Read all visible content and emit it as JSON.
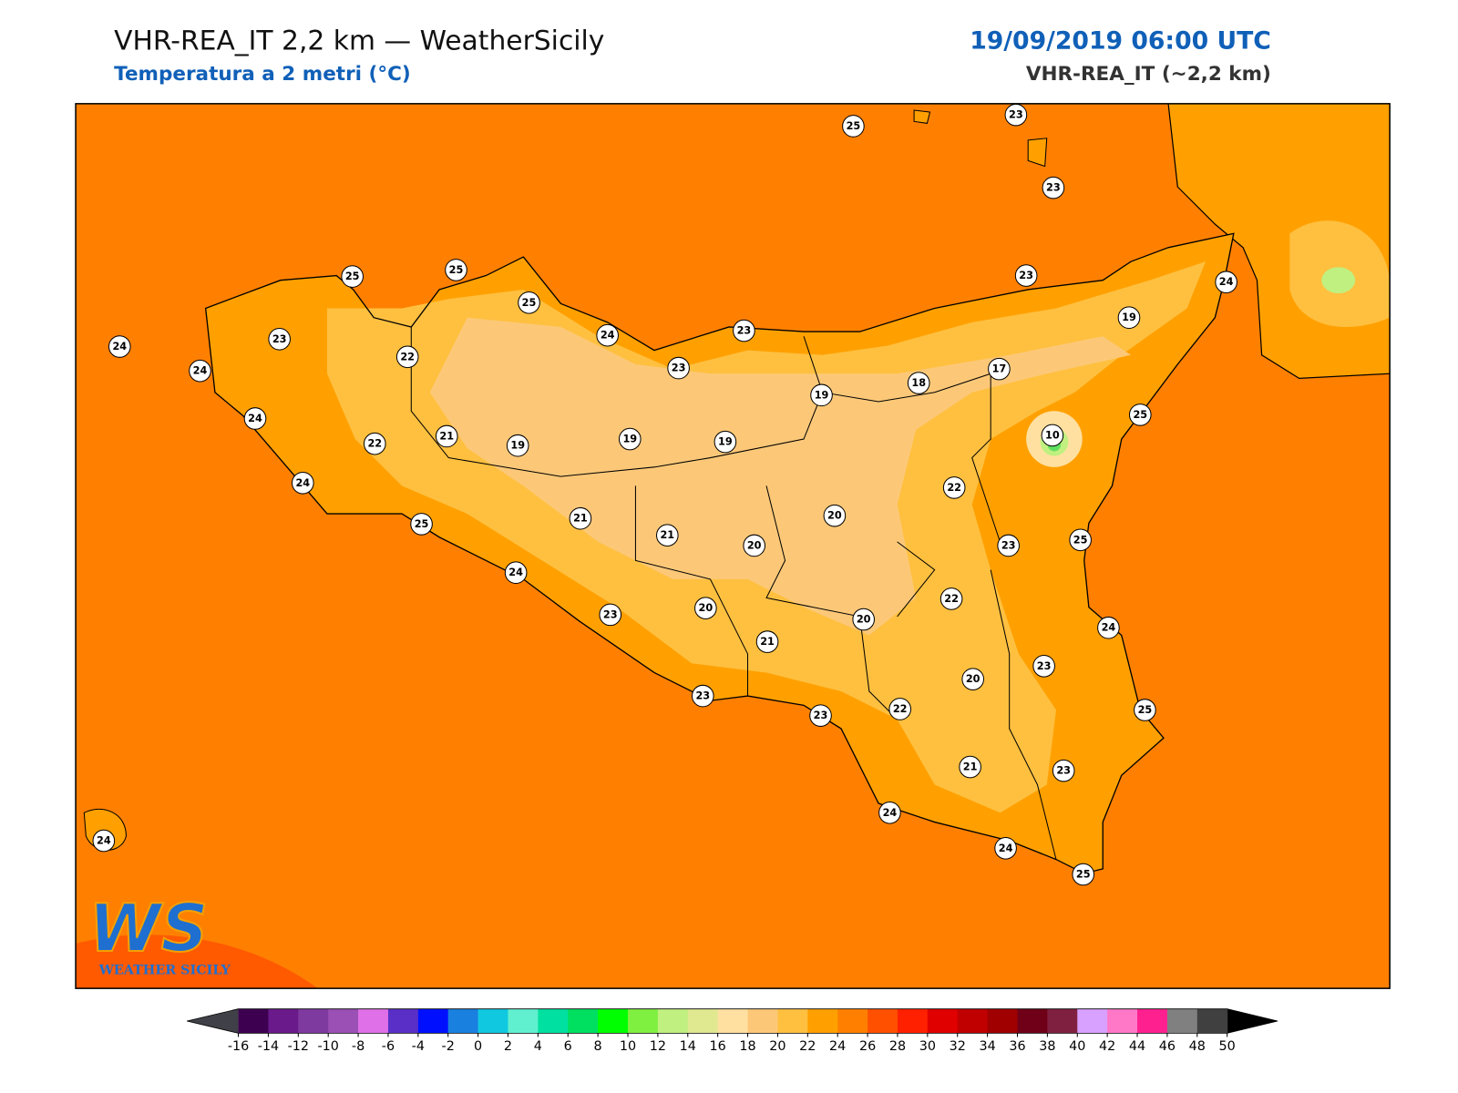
{
  "header": {
    "title": "VHR-REA_IT 2,2 km — WeatherSicily",
    "subtitle": "Temperatura a 2 metri (°C)",
    "datetime": "19/09/2019 06:00 UTC",
    "model": "VHR-REA_IT (~2,2 km)"
  },
  "stations": [
    25,
    23,
    23,
    25,
    25,
    25,
    23,
    24,
    24,
    22,
    24,
    23,
    23,
    23,
    24,
    19,
    17,
    18,
    19,
    25,
    10,
    24,
    22,
    21,
    19,
    19,
    19,
    24,
    22,
    25,
    21,
    20,
    21,
    20,
    23,
    25,
    24,
    22,
    23,
    20,
    20,
    21,
    24,
    20,
    23,
    23,
    23,
    22,
    25,
    21,
    23,
    24,
    24,
    25,
    24
  ],
  "colorbar": {
    "ticks": [
      -16,
      -14,
      -12,
      -10,
      -8,
      -6,
      -4,
      -2,
      0,
      2,
      4,
      6,
      8,
      10,
      12,
      14,
      16,
      18,
      20,
      22,
      24,
      26,
      28,
      30,
      32,
      34,
      36,
      38,
      40,
      42,
      44,
      46,
      48,
      50
    ],
    "colors": [
      "#3d0051",
      "#6a1a8a",
      "#7f3aa0",
      "#9a50b5",
      "#e070e8",
      "#5a2fc8",
      "#0010ff",
      "#1a80e0",
      "#10c8e0",
      "#60f0d0",
      "#00e0a0",
      "#00e060",
      "#00ff00",
      "#80f040",
      "#c0f080",
      "#e0e890",
      "#ffe0a0",
      "#fcc878",
      "#ffc040",
      "#ffa000",
      "#ff8000",
      "#ff5000",
      "#ff2000",
      "#e00000",
      "#c00000",
      "#a00000",
      "#700018",
      "#802040",
      "#d8a0ff",
      "#ff78c8",
      "#ff2090",
      "#808080",
      "#404040"
    ],
    "under": "#404048",
    "over": "#000000"
  },
  "logo": {
    "mark": "WS",
    "text": "WEATHER SICILY"
  }
}
